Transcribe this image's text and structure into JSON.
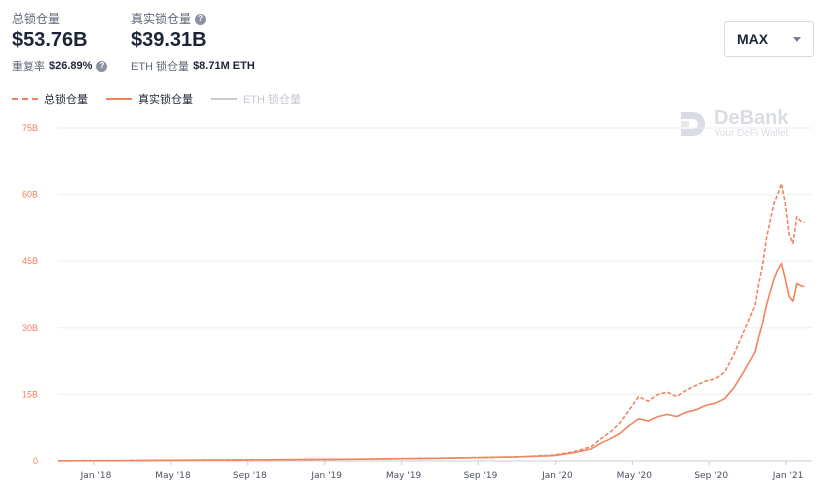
{
  "stats": {
    "total": {
      "label": "总锁仓量",
      "value": "$53.76B",
      "sub_label": "重复率",
      "sub_value": "$26.89%"
    },
    "real": {
      "label": "真实锁仓量",
      "value": "$39.31B",
      "sub_label": "ETH 锁仓量",
      "sub_value": "$8.71M ETH"
    }
  },
  "range_select": {
    "value": "MAX"
  },
  "legend": [
    {
      "label": "总锁仓量",
      "style": "dashed",
      "color": "#f0855f"
    },
    {
      "label": "真实锁仓量",
      "style": "solid",
      "color": "#f0855f"
    },
    {
      "label": "ETH 锁仓量",
      "style": "solid",
      "color": "#c8ccd3",
      "disabled": true
    }
  ],
  "watermark": {
    "name": "DeBank",
    "tagline": "Your DeFi Wallet"
  },
  "chart_data": {
    "type": "line",
    "y_ticks": [
      "0",
      "15B",
      "30B",
      "45B",
      "60B",
      "75B"
    ],
    "ylim": [
      0,
      75
    ],
    "x_ticks": [
      "Jan '18",
      "May '18",
      "Sep '18",
      "Jan '19",
      "May '19",
      "Sep '19",
      "Jan '20",
      "May '20",
      "Sep '20",
      "Jan '21"
    ],
    "grid": true,
    "legend_position": "top-left",
    "series": [
      {
        "name": "总锁仓量",
        "style": "dashed",
        "color": "#f0855f",
        "x": [
          0,
          4,
          8,
          12,
          16,
          20,
          24,
          26,
          27,
          28,
          28.5,
          29,
          29.5,
          30,
          30.5,
          31,
          31.5,
          32,
          32.5,
          33,
          33.5,
          34,
          34.5,
          35,
          35.5,
          36,
          36.2,
          36.4,
          36.6,
          36.8,
          37,
          37.2,
          37.4,
          37.6,
          37.8,
          38.0,
          38.2,
          38.4,
          38.6,
          38.8,
          39.0,
          39.2
        ],
        "values": [
          0.05,
          0.1,
          0.2,
          0.3,
          0.4,
          0.6,
          0.9,
          1.3,
          2.0,
          3.2,
          5.0,
          6.5,
          8.5,
          11.5,
          14.5,
          13.5,
          15.0,
          15.5,
          14.5,
          16.0,
          17.0,
          18.0,
          18.5,
          20.0,
          24.0,
          29.0,
          31.0,
          33.0,
          35.0,
          40.0,
          44.0,
          50.0,
          54.0,
          58.0,
          60.0,
          62.5,
          58.0,
          51.0,
          49.0,
          55.0,
          54.0,
          53.8
        ]
      },
      {
        "name": "真实锁仓量",
        "style": "solid",
        "color": "#f0855f",
        "x": [
          0,
          4,
          8,
          12,
          16,
          20,
          24,
          26,
          27,
          28,
          28.5,
          29,
          29.5,
          30,
          30.5,
          31,
          31.5,
          32,
          32.5,
          33,
          33.5,
          34,
          34.5,
          35,
          35.5,
          36,
          36.2,
          36.4,
          36.6,
          36.8,
          37,
          37.2,
          37.4,
          37.6,
          37.8,
          38.0,
          38.2,
          38.4,
          38.6,
          38.8,
          39.0,
          39.2
        ],
        "values": [
          0.05,
          0.1,
          0.2,
          0.3,
          0.4,
          0.6,
          0.9,
          1.2,
          1.8,
          2.7,
          4.0,
          5.0,
          6.2,
          8.0,
          9.5,
          9.0,
          10.0,
          10.5,
          10.0,
          11.0,
          11.5,
          12.5,
          13.0,
          14.0,
          16.5,
          20.0,
          21.5,
          23.0,
          24.5,
          28.0,
          31.0,
          35.0,
          38.0,
          41.0,
          43.0,
          44.5,
          41.0,
          37.0,
          36.0,
          40.0,
          39.5,
          39.3
        ]
      }
    ]
  }
}
